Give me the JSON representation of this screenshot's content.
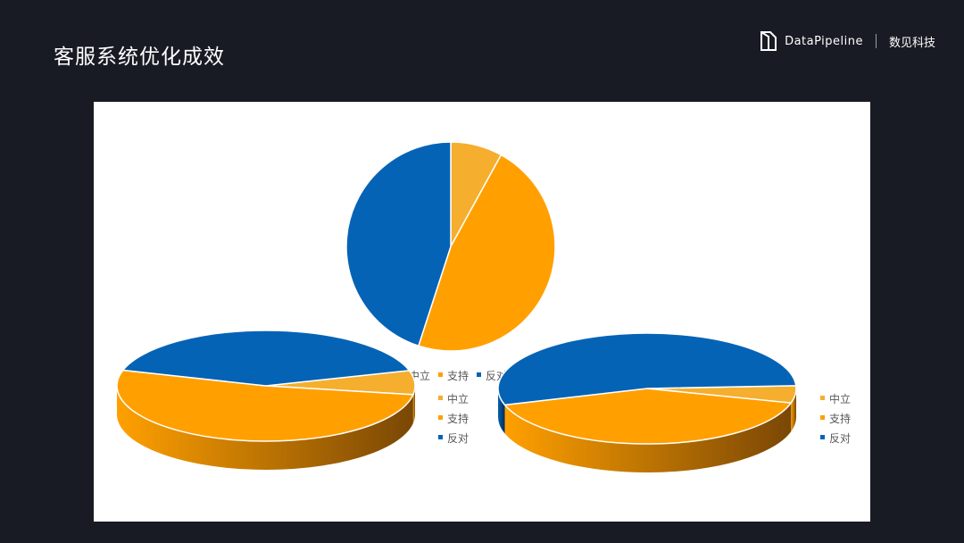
{
  "header": {
    "title": "客服系统优化成效",
    "brand_name": "DataPipeline",
    "brand_cn": "数见科技"
  },
  "colors": {
    "neutral": "#F5AE2E",
    "support": "#FFA000",
    "oppose": "#0563B6",
    "support_side_dark": "#7A4705",
    "oppose_side_dark": "#022A54"
  },
  "chart_data": [
    {
      "type": "pie",
      "title": "",
      "categories": [
        "中立",
        "支持",
        "反对"
      ],
      "values": [
        8,
        47,
        45
      ],
      "legend": "bottom-right"
    },
    {
      "type": "pie",
      "title": "",
      "categories": [
        "中立",
        "支持",
        "反对"
      ],
      "values": [
        7,
        52,
        41
      ],
      "legend": "right"
    },
    {
      "type": "pie",
      "title": "",
      "categories": [
        "中立",
        "支持",
        "反对"
      ],
      "values": [
        5,
        41,
        54
      ],
      "legend": "right"
    }
  ]
}
